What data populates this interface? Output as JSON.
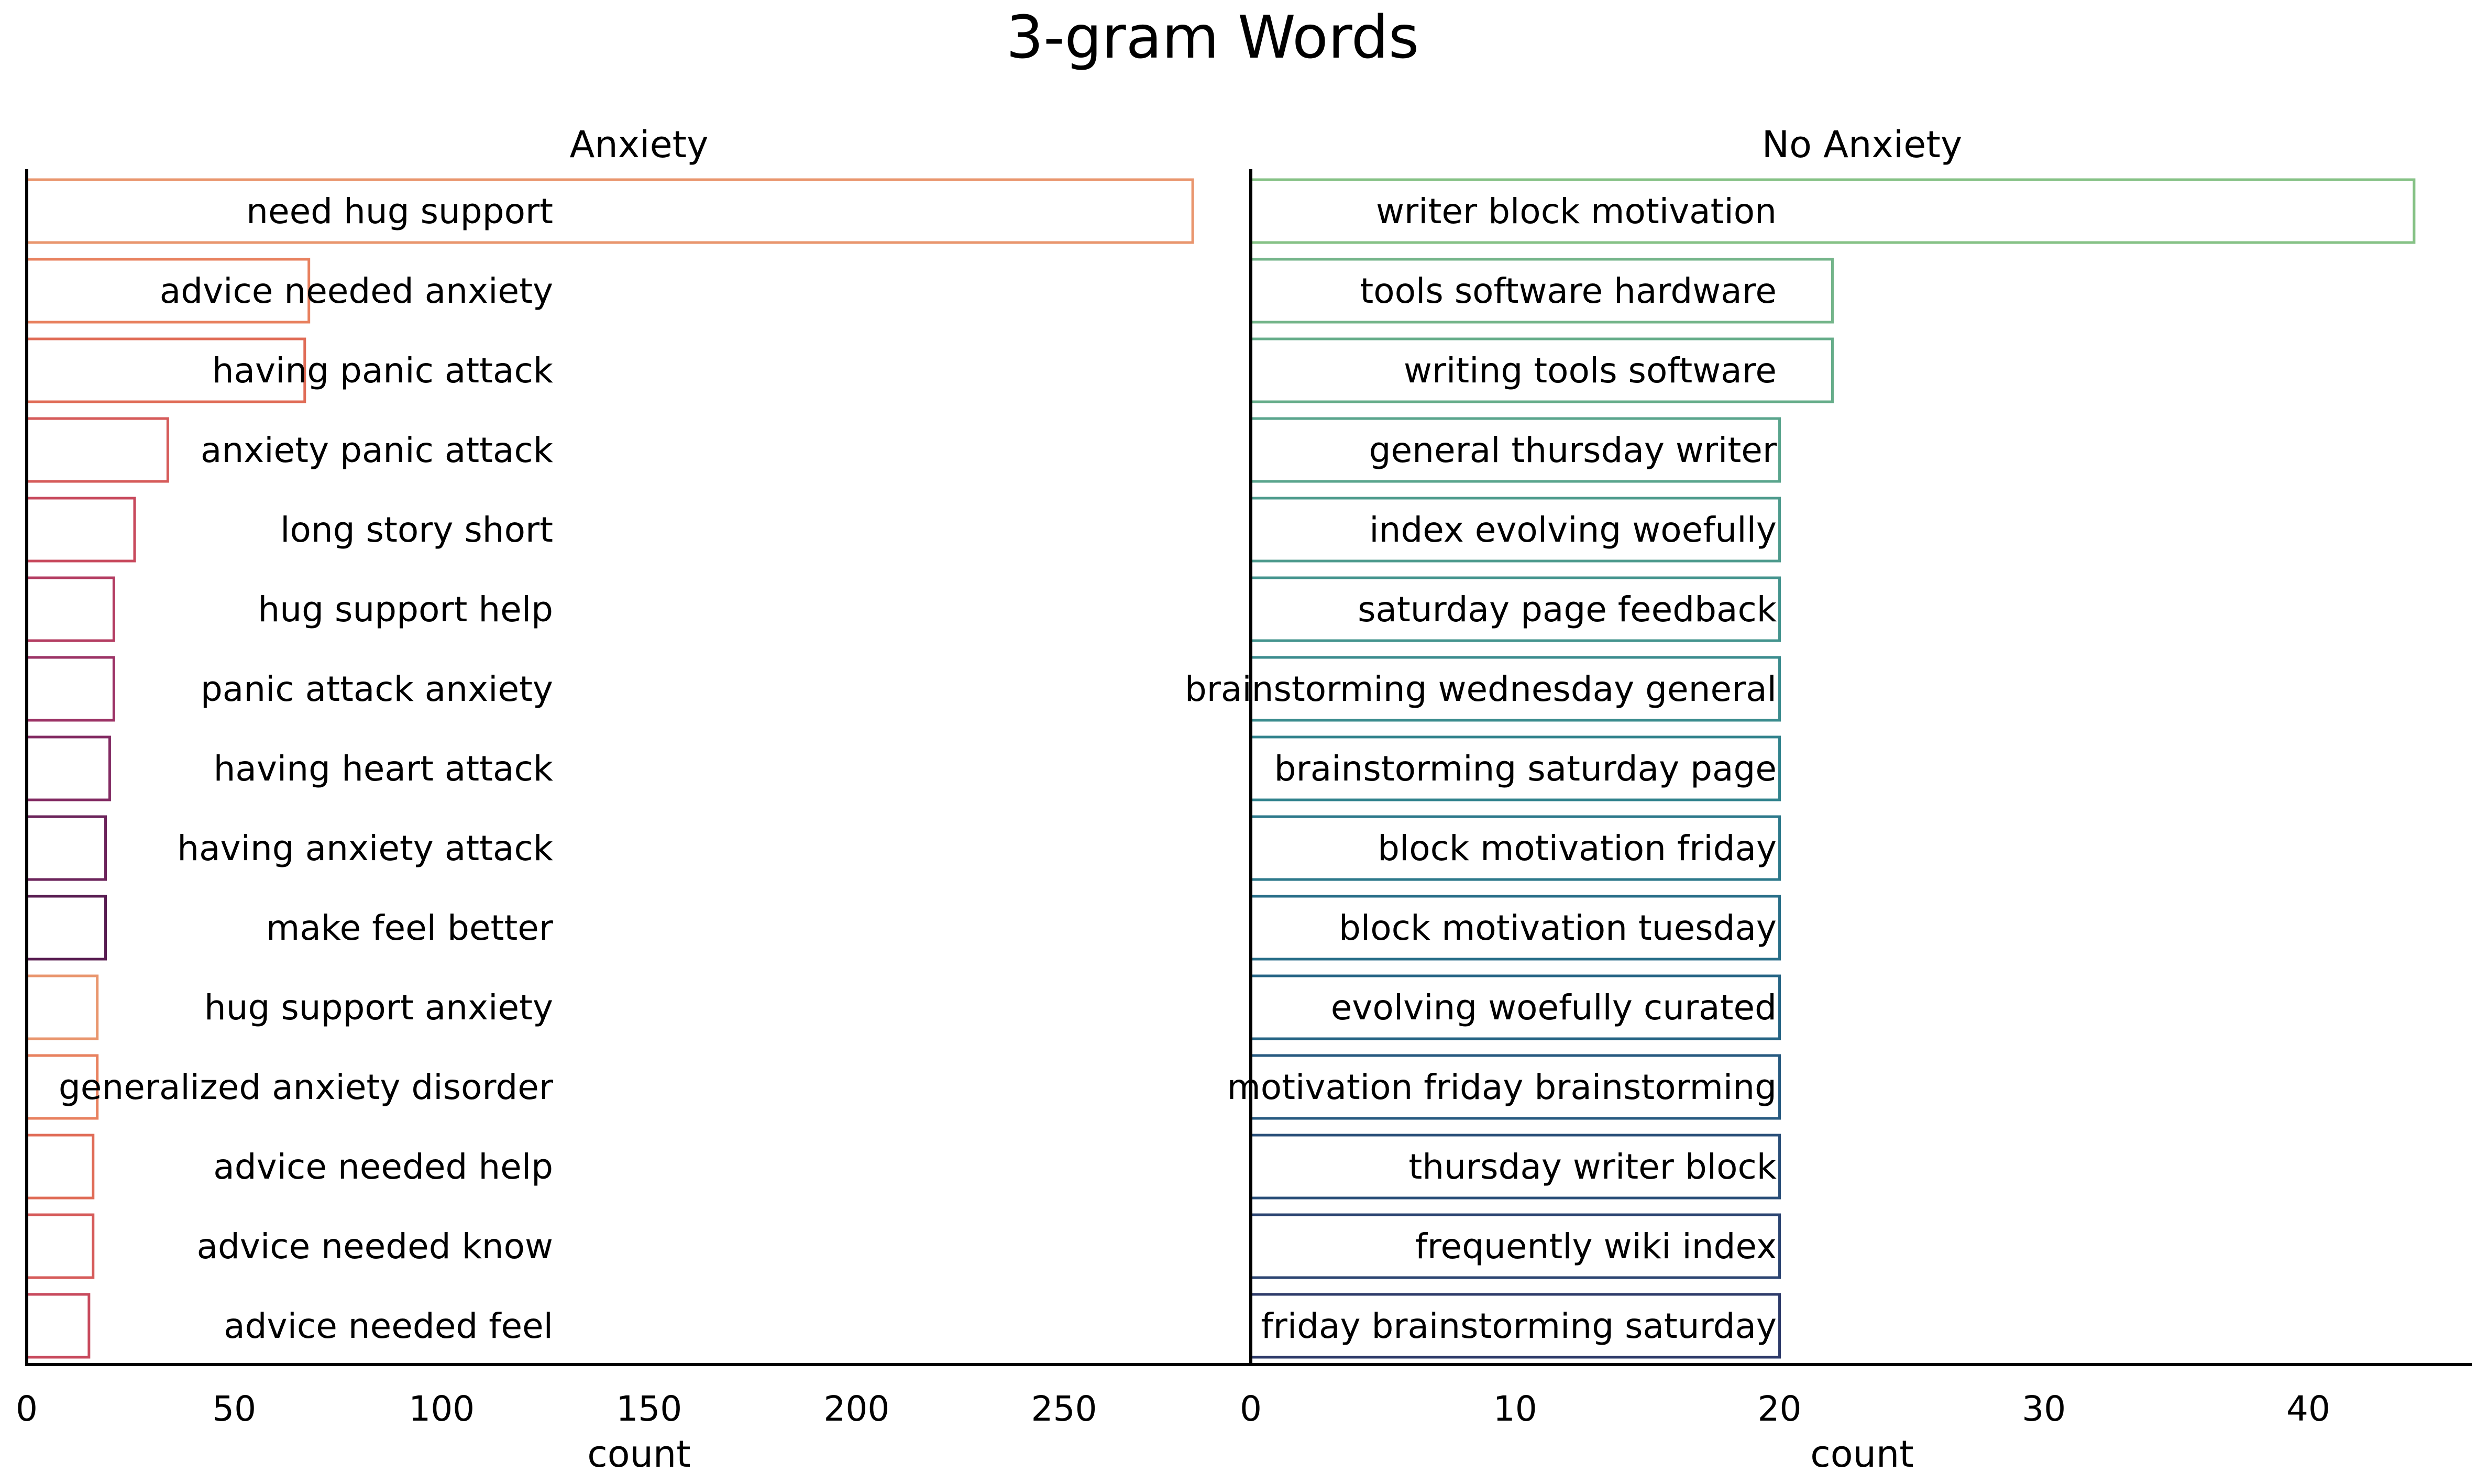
{
  "title": "3-gram Words",
  "chart_data": [
    {
      "type": "bar",
      "orientation": "horizontal",
      "title": "Anxiety",
      "xlabel": "count",
      "ylabel": "",
      "xlim": [
        0,
        295
      ],
      "xticks": [
        0,
        50,
        100,
        150,
        200,
        250
      ],
      "grid": false,
      "categories": [
        "need hug support",
        "advice needed anxiety",
        "having panic attack",
        "anxiety panic attack",
        "long story short",
        "hug support help",
        "panic attack anxiety",
        "having heart attack",
        "having anxiety attack",
        "make feel better",
        "hug support anxiety",
        "generalized anxiety disorder",
        "advice needed help",
        "advice needed know",
        "advice needed feel"
      ],
      "values": [
        281,
        68,
        67,
        34,
        26,
        21,
        21,
        20,
        19,
        19,
        17,
        17,
        16,
        16,
        15
      ],
      "colors": [
        "#e9966e",
        "#e8815f",
        "#e06c57",
        "#d65b5a",
        "#c84a5d",
        "#b43d62",
        "#9c3366",
        "#832b63",
        "#6c245b",
        "#581c51",
        "#e9966e",
        "#e8815f",
        "#e06c57",
        "#d65b5a",
        "#c84a5d"
      ]
    },
    {
      "type": "bar",
      "orientation": "horizontal",
      "title": "No Anxiety",
      "xlabel": "count",
      "ylabel": "",
      "xlim": [
        0,
        46.2
      ],
      "xticks": [
        0,
        10,
        20,
        30,
        40
      ],
      "grid": false,
      "categories": [
        "writer block motivation",
        "tools software hardware",
        "writing tools software",
        "general thursday writer",
        "index evolving woefully",
        "saturday page feedback",
        "brainstorming wednesday general",
        "brainstorming saturday page",
        "block motivation friday",
        "block motivation tuesday",
        "evolving woefully curated",
        "motivation friday brainstorming",
        "thursday writer block",
        "frequently wiki index",
        "friday brainstorming saturday"
      ],
      "values": [
        44,
        22,
        22,
        20,
        20,
        20,
        20,
        20,
        20,
        20,
        20,
        20,
        20,
        20,
        20
      ],
      "colors": [
        "#86c286",
        "#74b58a",
        "#66ad8a",
        "#5aa58d",
        "#4e9b8d",
        "#44948e",
        "#3b8c8e",
        "#32838d",
        "#2d798b",
        "#286e88",
        "#266585",
        "#275a80",
        "#2a4f79",
        "#2c4572",
        "#2e3b6a"
      ]
    }
  ]
}
